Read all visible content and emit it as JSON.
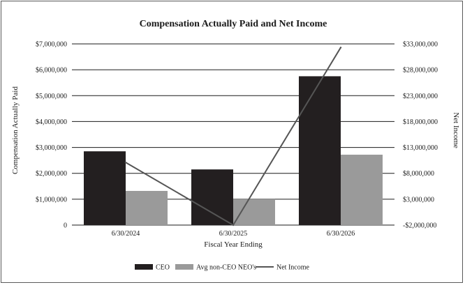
{
  "chart_data": {
    "type": "bar",
    "title": "Compensation Actually Paid and Net Income",
    "xlabel": "Fiscal Year Ending",
    "ylabel": "Compensation Actually Paid",
    "y2label": "Net Income",
    "categories": [
      "6/30/2024",
      "6/30/2025",
      "6/30/2026"
    ],
    "ylim": [
      0,
      7000000
    ],
    "y2lim": [
      -2000000,
      33000000
    ],
    "yticks": [
      "0",
      "$1,000,000",
      "$2,000,000",
      "$3,000,000",
      "$4,000,000",
      "$5,000,000",
      "$6,000,000",
      "$7,000,000"
    ],
    "y2ticks": [
      "-$2,000,000",
      "$3,000,000",
      "$8,000,000",
      "$13,000,000",
      "$18,000,000",
      "$23,000,000",
      "$28,000,000",
      "$33,000,000"
    ],
    "grid": true,
    "legend_position": "bottom",
    "series": [
      {
        "name": "CEO",
        "type": "bar",
        "axis": "left",
        "color": "#231f20",
        "values": [
          2850000,
          2150000,
          5750000
        ]
      },
      {
        "name": "Avg non-CEO NEO's",
        "type": "bar",
        "axis": "left",
        "color": "#9a9a9a",
        "values": [
          1320000,
          1000000,
          2720000
        ]
      },
      {
        "name": "Net Income",
        "type": "line",
        "axis": "right",
        "color": "#555555",
        "values": [
          10100000,
          -2000000,
          32300000
        ]
      }
    ]
  }
}
